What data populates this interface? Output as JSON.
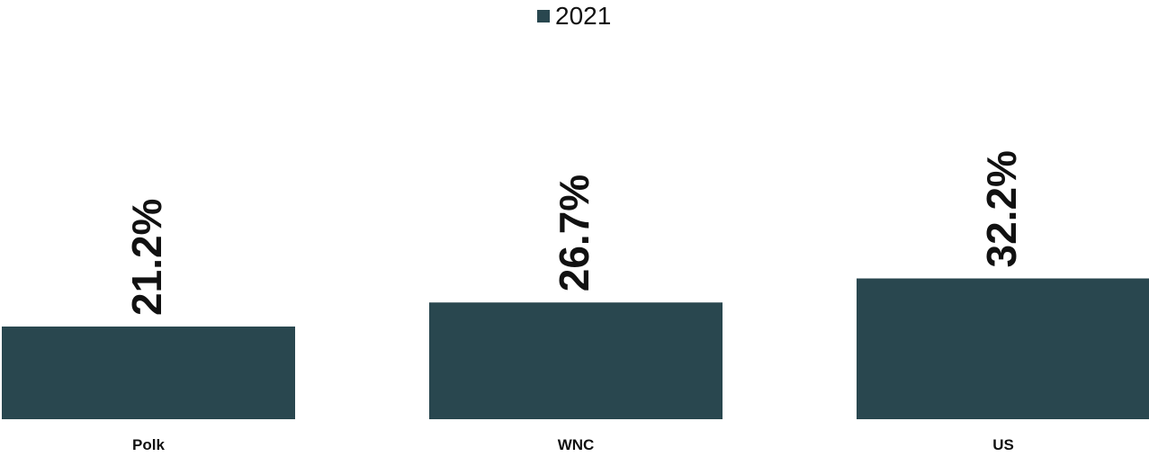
{
  "chart_data": {
    "type": "bar",
    "categories": [
      "Polk",
      "WNC",
      "US"
    ],
    "series": [
      {
        "name": "2021",
        "values": [
          21.2,
          26.7,
          32.2
        ],
        "labels": [
          "21.2%",
          "26.7%",
          "32.2%"
        ],
        "color": "#29474F"
      }
    ],
    "title": "",
    "xlabel": "",
    "ylabel": "",
    "ylim": [
      0,
      100
    ],
    "grid": false,
    "legend": "top-center"
  }
}
